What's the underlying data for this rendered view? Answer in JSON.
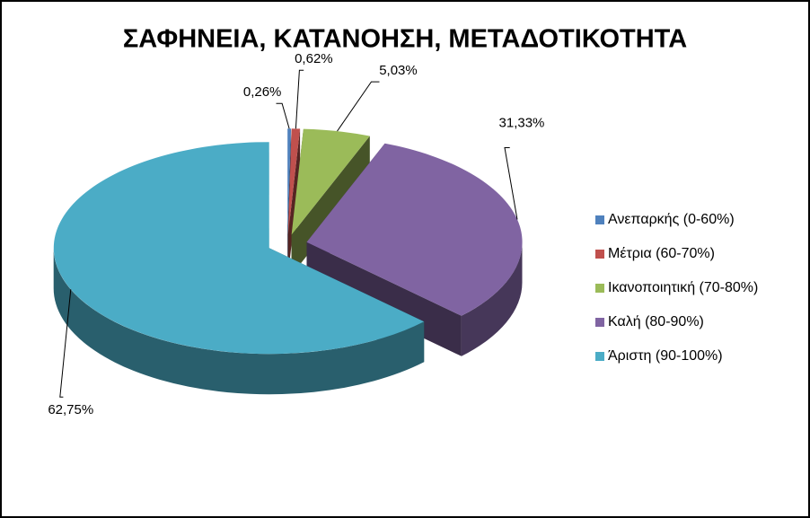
{
  "chart_data": {
    "type": "pie",
    "title": "ΣΑΦΗΝΕΙΑ, ΚΑΤΑΝΟΗΣΗ, ΜΕΤΑΔΟΤΙΚΟΤΗΤΑ",
    "categories": [
      "Ανεπαρκής (0-60%)",
      "Μέτρια (60-70%)",
      "Ικανοποιητική (70-80%)",
      "Καλή (80-90%)",
      "Άριστη (90-100%)"
    ],
    "values": [
      0.26,
      0.62,
      5.03,
      31.33,
      62.75
    ],
    "value_labels": [
      "0,26%",
      "0,62%",
      "5,03%",
      "31,33%",
      "62,75%"
    ],
    "colors": [
      "#4f81bd",
      "#c0504d",
      "#9bbb59",
      "#8064a2",
      "#4bacc6"
    ],
    "legend": "right"
  }
}
